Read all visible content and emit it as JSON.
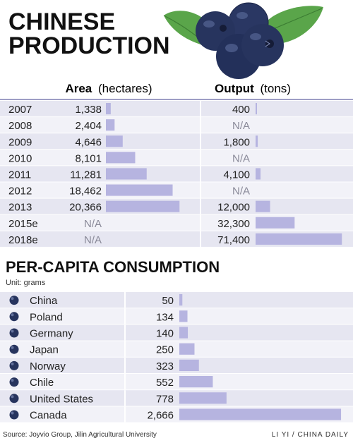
{
  "title_production": [
    "CHINESE",
    "PRODUCTION"
  ],
  "title_consumption": "PER-CAPITA CONSUMPTION",
  "unit_label": "Unit: grams",
  "source": "Source: Joyvio Group, Jilin Agricultural University",
  "credit": "LI YI / CHINA DAILY",
  "colors": {
    "bar": "#b6b4e0",
    "row_band": "#e6e6f1",
    "row_band_alt": "#f2f2f8",
    "divider": "#ffffff",
    "line": "#7f7fb2",
    "text": "#222222",
    "na_text": "#8a8a99",
    "leaf": "#58a046",
    "berry": "#27345e"
  },
  "chart_data": [
    {
      "type": "bar",
      "title": "CHINESE PRODUCTION",
      "categories": [
        "2007",
        "2008",
        "2009",
        "2010",
        "2011",
        "2012",
        "2013",
        "2015e",
        "2018e"
      ],
      "series": [
        {
          "name_bold": "Area",
          "name_unit": "(hectares)",
          "values": [
            1338,
            2404,
            4646,
            8101,
            11281,
            18462,
            20366,
            null,
            null
          ],
          "labels": [
            "1,338",
            "2,404",
            "4,646",
            "8,101",
            "11,281",
            "18,462",
            "20,366",
            "N/A",
            "N/A"
          ]
        },
        {
          "name_bold": "Output",
          "name_unit": "(tons)",
          "values": [
            400,
            null,
            1800,
            null,
            4100,
            null,
            12000,
            32300,
            71400
          ],
          "labels": [
            "400",
            "N/A",
            "1,800",
            "N/A",
            "4,100",
            "N/A",
            "12,000",
            "32,300",
            "71,400"
          ]
        }
      ]
    },
    {
      "type": "bar",
      "title": "PER-CAPITA CONSUMPTION",
      "ylabel": "Unit: grams",
      "categories": [
        "China",
        "Poland",
        "Germany",
        "Japan",
        "Norway",
        "Chile",
        "United States",
        "Canada"
      ],
      "values": [
        50,
        134,
        140,
        250,
        323,
        552,
        778,
        2666
      ],
      "labels": [
        "50",
        "134",
        "140",
        "250",
        "323",
        "552",
        "778",
        "2,666"
      ]
    }
  ]
}
